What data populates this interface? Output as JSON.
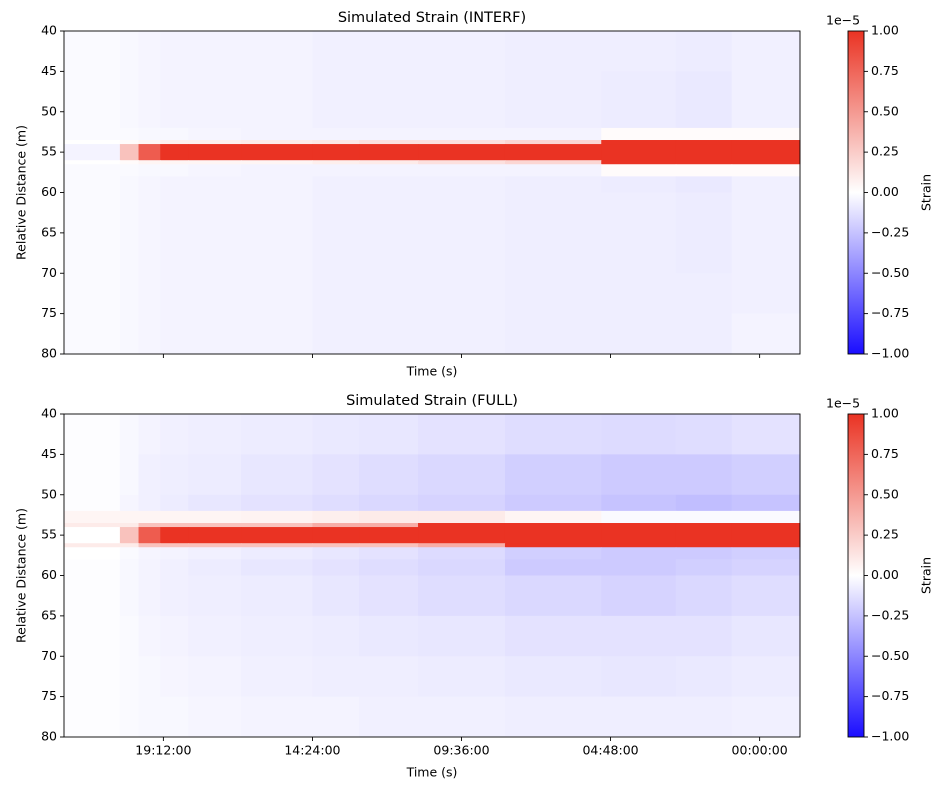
{
  "chart_data": [
    {
      "type": "heatmap",
      "title": "Simulated Strain (INTERF)",
      "xlabel": "Time (s)",
      "ylabel": "Relative Distance (m)",
      "x_edges": [
        1.6,
        3.4,
        4.0,
        4.7,
        5.6,
        7.3,
        9.6,
        11.1,
        13.0,
        15.8,
        18.9,
        21.3,
        23.1,
        25.3
      ],
      "y_edges": [
        40,
        45,
        50,
        52,
        53.5,
        54,
        56,
        56.5,
        58,
        60,
        65,
        70,
        75,
        80
      ],
      "values": [
        [
          -0.02,
          -0.03,
          -0.04,
          -0.05,
          -0.05,
          -0.05,
          -0.06,
          -0.06,
          -0.06,
          -0.07,
          -0.07,
          -0.08,
          -0.06
        ],
        [
          -0.02,
          -0.03,
          -0.04,
          -0.05,
          -0.05,
          -0.05,
          -0.06,
          -0.06,
          -0.06,
          -0.07,
          -0.08,
          -0.09,
          -0.06
        ],
        [
          -0.02,
          -0.03,
          -0.04,
          -0.05,
          -0.05,
          -0.05,
          -0.06,
          -0.06,
          -0.06,
          -0.07,
          -0.08,
          -0.09,
          -0.06
        ],
        [
          -0.02,
          -0.02,
          -0.03,
          -0.03,
          -0.04,
          -0.05,
          -0.05,
          -0.05,
          -0.05,
          -0.05,
          0.02,
          0.02,
          0.02
        ],
        [
          0,
          0.02,
          0.05,
          0.08,
          0.08,
          0.1,
          0.12,
          0.15,
          0.15,
          0.2,
          1,
          1,
          1
        ],
        [
          -0.05,
          0.3,
          0.8,
          1,
          1,
          1,
          1,
          1,
          1,
          1,
          1,
          1,
          1
        ],
        [
          0,
          0.02,
          0.05,
          0.05,
          0.05,
          0.05,
          0.08,
          0.1,
          0.15,
          0.2,
          1,
          1,
          1
        ],
        [
          -0.02,
          -0.02,
          -0.03,
          -0.03,
          -0.04,
          -0.05,
          -0.05,
          -0.05,
          -0.05,
          -0.05,
          0.02,
          0.02,
          0.02
        ],
        [
          -0.02,
          -0.03,
          -0.04,
          -0.05,
          -0.05,
          -0.05,
          -0.06,
          -0.06,
          -0.06,
          -0.07,
          -0.08,
          -0.09,
          -0.06
        ],
        [
          -0.02,
          -0.03,
          -0.04,
          -0.05,
          -0.05,
          -0.05,
          -0.06,
          -0.06,
          -0.06,
          -0.07,
          -0.07,
          -0.08,
          -0.06
        ],
        [
          -0.02,
          -0.03,
          -0.04,
          -0.05,
          -0.05,
          -0.05,
          -0.06,
          -0.06,
          -0.06,
          -0.07,
          -0.07,
          -0.08,
          -0.06
        ],
        [
          -0.02,
          -0.03,
          -0.04,
          -0.05,
          -0.05,
          -0.05,
          -0.06,
          -0.06,
          -0.06,
          -0.07,
          -0.07,
          -0.07,
          -0.06
        ],
        [
          -0.02,
          -0.03,
          -0.04,
          -0.05,
          -0.05,
          -0.05,
          -0.06,
          -0.06,
          -0.06,
          -0.07,
          -0.07,
          -0.07,
          -0.05
        ]
      ],
      "xlim": [
        1.6,
        25.3
      ],
      "ylim": [
        80,
        40
      ],
      "xticks": [
        4.8,
        9.6,
        14.4,
        19.2,
        24.0
      ],
      "xticklabels_visible": false,
      "yticks": [
        40,
        45,
        50,
        55,
        60,
        65,
        70,
        75,
        80
      ],
      "colorbar": {
        "label": "Strain",
        "offset_text": "1e−5",
        "clim": [
          -1,
          1
        ],
        "cmap": [
          "#1a0dff",
          "#ffffff",
          "#ea3323"
        ],
        "ticks": [
          {
            "value": -1,
            "label": "−1.00"
          },
          {
            "value": -0.75,
            "label": "−0.75"
          },
          {
            "value": -0.5,
            "label": "−0.50"
          },
          {
            "value": -0.25,
            "label": "−0.25"
          },
          {
            "value": 0,
            "label": "0.00"
          },
          {
            "value": 0.25,
            "label": "0.25"
          },
          {
            "value": 0.5,
            "label": "0.50"
          },
          {
            "value": 0.75,
            "label": "0.75"
          },
          {
            "value": 1,
            "label": "1.00"
          }
        ]
      }
    },
    {
      "type": "heatmap",
      "title": "Simulated Strain (FULL)",
      "xlabel": "Time (s)",
      "ylabel": "Relative Distance (m)",
      "x_edges": [
        1.6,
        3.4,
        4.0,
        4.7,
        5.6,
        7.3,
        9.6,
        11.1,
        13.0,
        15.8,
        18.9,
        21.3,
        23.1,
        25.3
      ],
      "y_edges": [
        40,
        45,
        50,
        52,
        53.5,
        54,
        56,
        56.5,
        58,
        60,
        65,
        70,
        75,
        80
      ],
      "values": [
        [
          -0.01,
          -0.03,
          -0.05,
          -0.06,
          -0.07,
          -0.08,
          -0.09,
          -0.1,
          -0.12,
          -0.14,
          -0.15,
          -0.14,
          -0.12
        ],
        [
          -0.01,
          -0.03,
          -0.06,
          -0.07,
          -0.08,
          -0.1,
          -0.12,
          -0.14,
          -0.16,
          -0.2,
          -0.22,
          -0.22,
          -0.2
        ],
        [
          -0.01,
          -0.04,
          -0.06,
          -0.08,
          -0.1,
          -0.12,
          -0.14,
          -0.16,
          -0.18,
          -0.22,
          -0.25,
          -0.27,
          -0.25
        ],
        [
          0.05,
          0.05,
          0.05,
          0.05,
          0.05,
          0.06,
          0.08,
          0.1,
          0.1,
          0.05,
          -0.02,
          -0.02,
          -0.02
        ],
        [
          0.1,
          0.1,
          0.3,
          0.3,
          0.3,
          0.3,
          0.4,
          0.4,
          1,
          1,
          1,
          1,
          1
        ],
        [
          0,
          0.3,
          0.8,
          1,
          1,
          1,
          1,
          1,
          1,
          1,
          1,
          1,
          1
        ],
        [
          0.1,
          0.1,
          0.3,
          0.3,
          0.3,
          0.3,
          0.3,
          0.3,
          0.4,
          1,
          1,
          1,
          1
        ],
        [
          0,
          -0.02,
          -0.04,
          -0.05,
          -0.06,
          -0.08,
          -0.1,
          -0.12,
          -0.15,
          -0.2,
          -0.22,
          -0.22,
          -0.2
        ],
        [
          -0.01,
          -0.03,
          -0.05,
          -0.06,
          -0.08,
          -0.1,
          -0.12,
          -0.14,
          -0.16,
          -0.22,
          -0.22,
          -0.2,
          -0.18
        ],
        [
          -0.01,
          -0.03,
          -0.05,
          -0.06,
          -0.07,
          -0.08,
          -0.1,
          -0.12,
          -0.14,
          -0.16,
          -0.18,
          -0.16,
          -0.14
        ],
        [
          -0.01,
          -0.02,
          -0.04,
          -0.05,
          -0.06,
          -0.07,
          -0.08,
          -0.09,
          -0.1,
          -0.12,
          -0.12,
          -0.12,
          -0.1
        ],
        [
          -0.01,
          -0.02,
          -0.03,
          -0.04,
          -0.05,
          -0.06,
          -0.07,
          -0.07,
          -0.08,
          -0.09,
          -0.1,
          -0.09,
          -0.08
        ],
        [
          -0.01,
          -0.02,
          -0.03,
          -0.03,
          -0.04,
          -0.05,
          -0.05,
          -0.06,
          -0.06,
          -0.07,
          -0.07,
          -0.07,
          -0.06
        ]
      ],
      "xlim": [
        1.6,
        25.3
      ],
      "ylim": [
        80,
        40
      ],
      "xticks": [
        {
          "value": 4.8,
          "label": "19:12:00"
        },
        {
          "value": 9.6,
          "label": "14:24:00"
        },
        {
          "value": 14.4,
          "label": "09:36:00"
        },
        {
          "value": 19.2,
          "label": "04:48:00"
        },
        {
          "value": 24.0,
          "label": "00:00:00"
        }
      ],
      "xticklabels_visible": true,
      "yticks": [
        40,
        45,
        50,
        55,
        60,
        65,
        70,
        75,
        80
      ],
      "colorbar": {
        "label": "Strain",
        "offset_text": "1e−5",
        "clim": [
          -1,
          1
        ],
        "cmap": [
          "#1a0dff",
          "#ffffff",
          "#ea3323"
        ],
        "ticks": [
          {
            "value": -1,
            "label": "−1.00"
          },
          {
            "value": -0.75,
            "label": "−0.75"
          },
          {
            "value": -0.5,
            "label": "−0.50"
          },
          {
            "value": -0.25,
            "label": "−0.25"
          },
          {
            "value": 0,
            "label": "0.00"
          },
          {
            "value": 0.25,
            "label": "0.25"
          },
          {
            "value": 0.5,
            "label": "0.50"
          },
          {
            "value": 0.75,
            "label": "0.75"
          },
          {
            "value": 1,
            "label": "1.00"
          }
        ]
      }
    }
  ]
}
